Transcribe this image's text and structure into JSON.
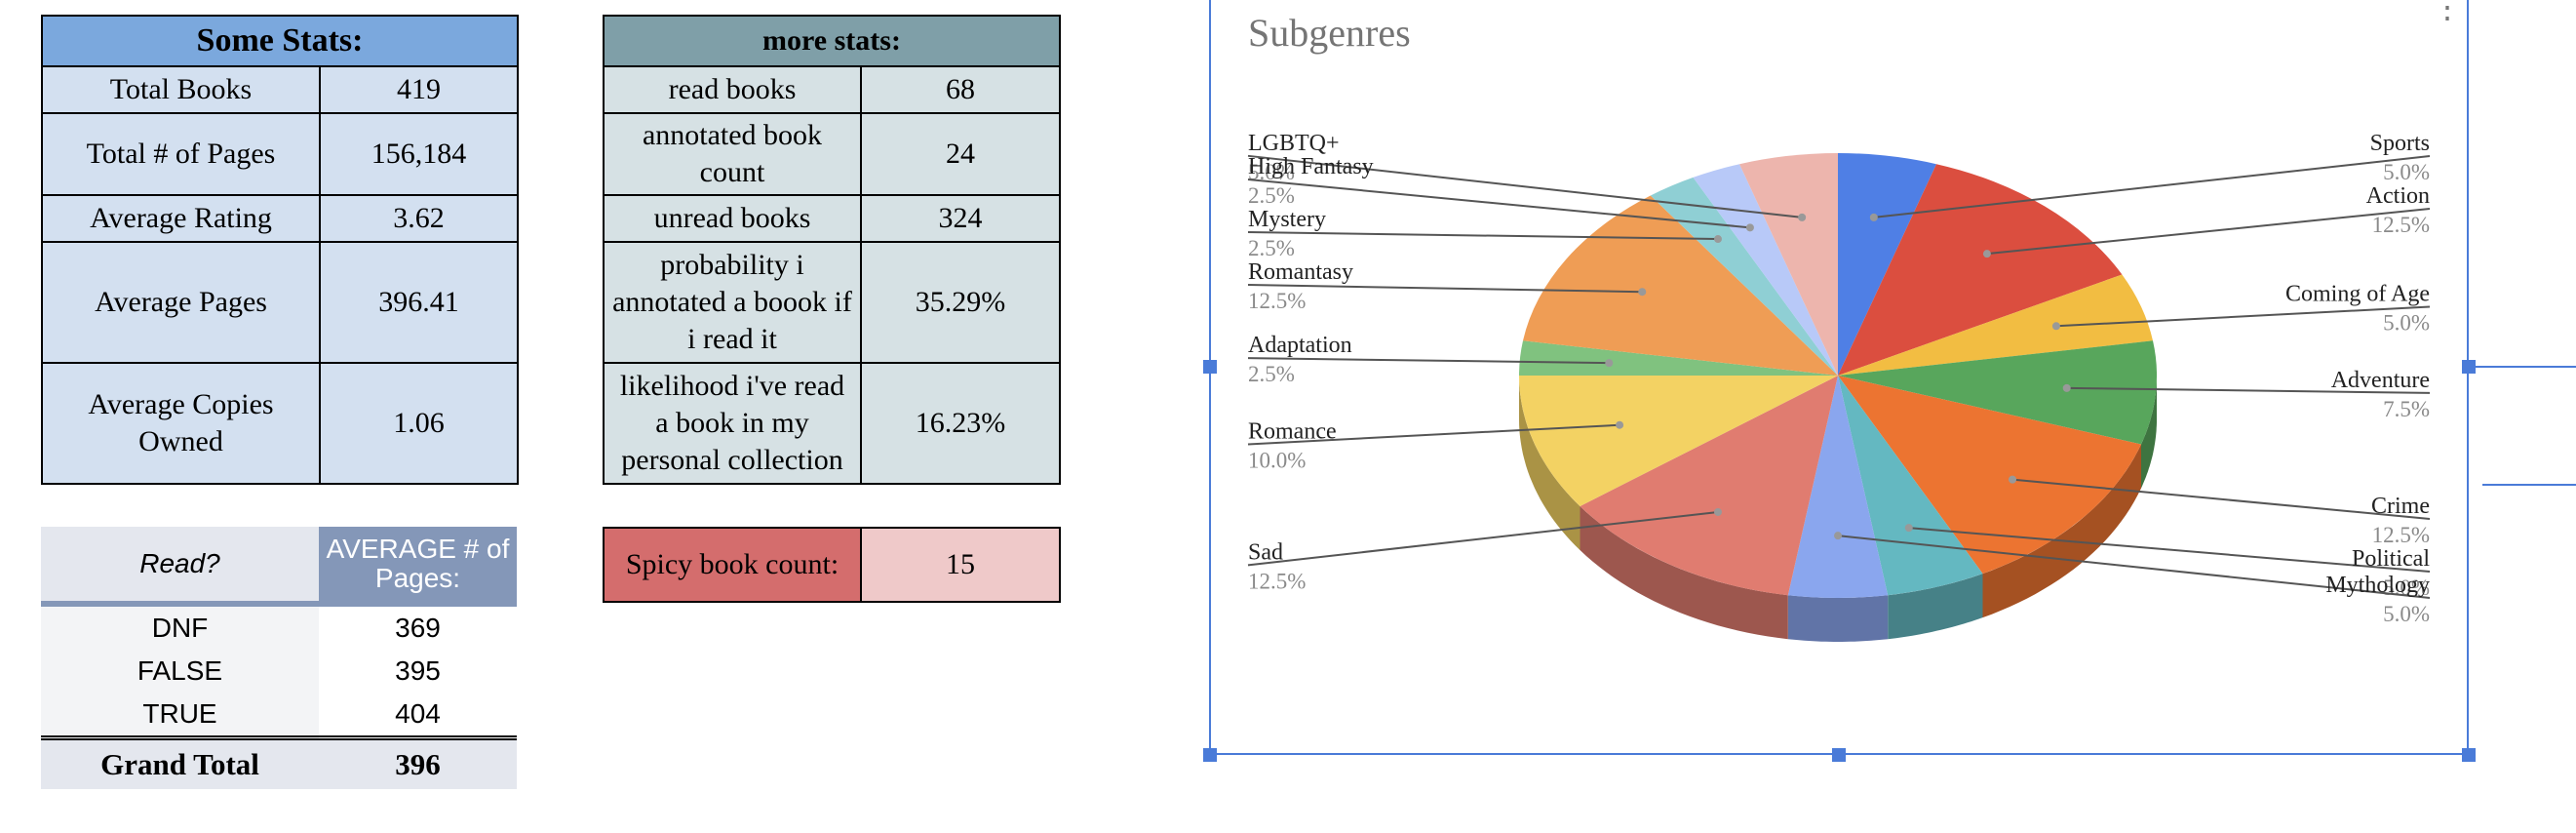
{
  "some_stats": {
    "title": "Some Stats:",
    "rows": [
      {
        "label": "Total Books",
        "value": "419"
      },
      {
        "label": "Total # of Pages",
        "value": "156,184"
      },
      {
        "label": "Average Rating",
        "value": "3.62"
      },
      {
        "label": "Average Pages",
        "value": "396.41"
      },
      {
        "label": "Average Copies Owned",
        "value": "1.06"
      }
    ]
  },
  "more_stats": {
    "title": "more stats:",
    "rows": [
      {
        "label": "read books",
        "value": "68"
      },
      {
        "label": "annotated book count",
        "value": "24"
      },
      {
        "label": "unread books",
        "value": "324"
      },
      {
        "label": "probability i annotated a boook if i read it",
        "value": "35.29%"
      },
      {
        "label": "likelihood i've read a book in my personal collection",
        "value": "16.23%"
      }
    ]
  },
  "spicy": {
    "label": "Spicy book count:",
    "value": "15"
  },
  "pivot": {
    "col1_header": "Read?",
    "col2_header": "AVERAGE # of Pages:",
    "rows": [
      {
        "label": "DNF",
        "value": "369"
      },
      {
        "label": "FALSE",
        "value": "395"
      },
      {
        "label": "TRUE",
        "value": "404"
      }
    ],
    "total_label": "Grand Total",
    "total_value": "396"
  },
  "chart_data": {
    "type": "pie",
    "title": "Subgenres",
    "slices": [
      {
        "label": "Sports",
        "value": 5.0,
        "display": "5.0%",
        "color": "#4f7fe5"
      },
      {
        "label": "Action",
        "value": 12.5,
        "display": "12.5%",
        "color": "#db4e3f"
      },
      {
        "label": "Coming of Age",
        "value": 5.0,
        "display": "5.0%",
        "color": "#f2bd42"
      },
      {
        "label": "Adventure",
        "value": 7.5,
        "display": "7.5%",
        "color": "#58a65c"
      },
      {
        "label": "Crime",
        "value": 12.5,
        "display": "12.5%",
        "color": "#ec7431"
      },
      {
        "label": "Political",
        "value": 5.0,
        "display": "5.0%",
        "color": "#64b8c1"
      },
      {
        "label": "Mythology",
        "value": 5.0,
        "display": "5.0%",
        "color": "#8aa6ee"
      },
      {
        "label": "Sad",
        "value": 12.5,
        "display": "12.5%",
        "color": "#e07c70"
      },
      {
        "label": "Romance",
        "value": 10.0,
        "display": "10.0%",
        "color": "#f3d263"
      },
      {
        "label": "Adaptation",
        "value": 2.5,
        "display": "2.5%",
        "color": "#80c27f"
      },
      {
        "label": "Romantasy",
        "value": 12.5,
        "display": "12.5%",
        "color": "#ef9d55"
      },
      {
        "label": "Mystery",
        "value": 2.5,
        "display": "2.5%",
        "color": "#8fcfd4"
      },
      {
        "label": "High Fantasy",
        "value": 2.5,
        "display": "2.5%",
        "color": "#b8c9f8"
      },
      {
        "label": "LGBTQ+",
        "value": 5.0,
        "display": "5.0%",
        "color": "#edb5ad"
      }
    ],
    "legend": "labels around pie"
  }
}
